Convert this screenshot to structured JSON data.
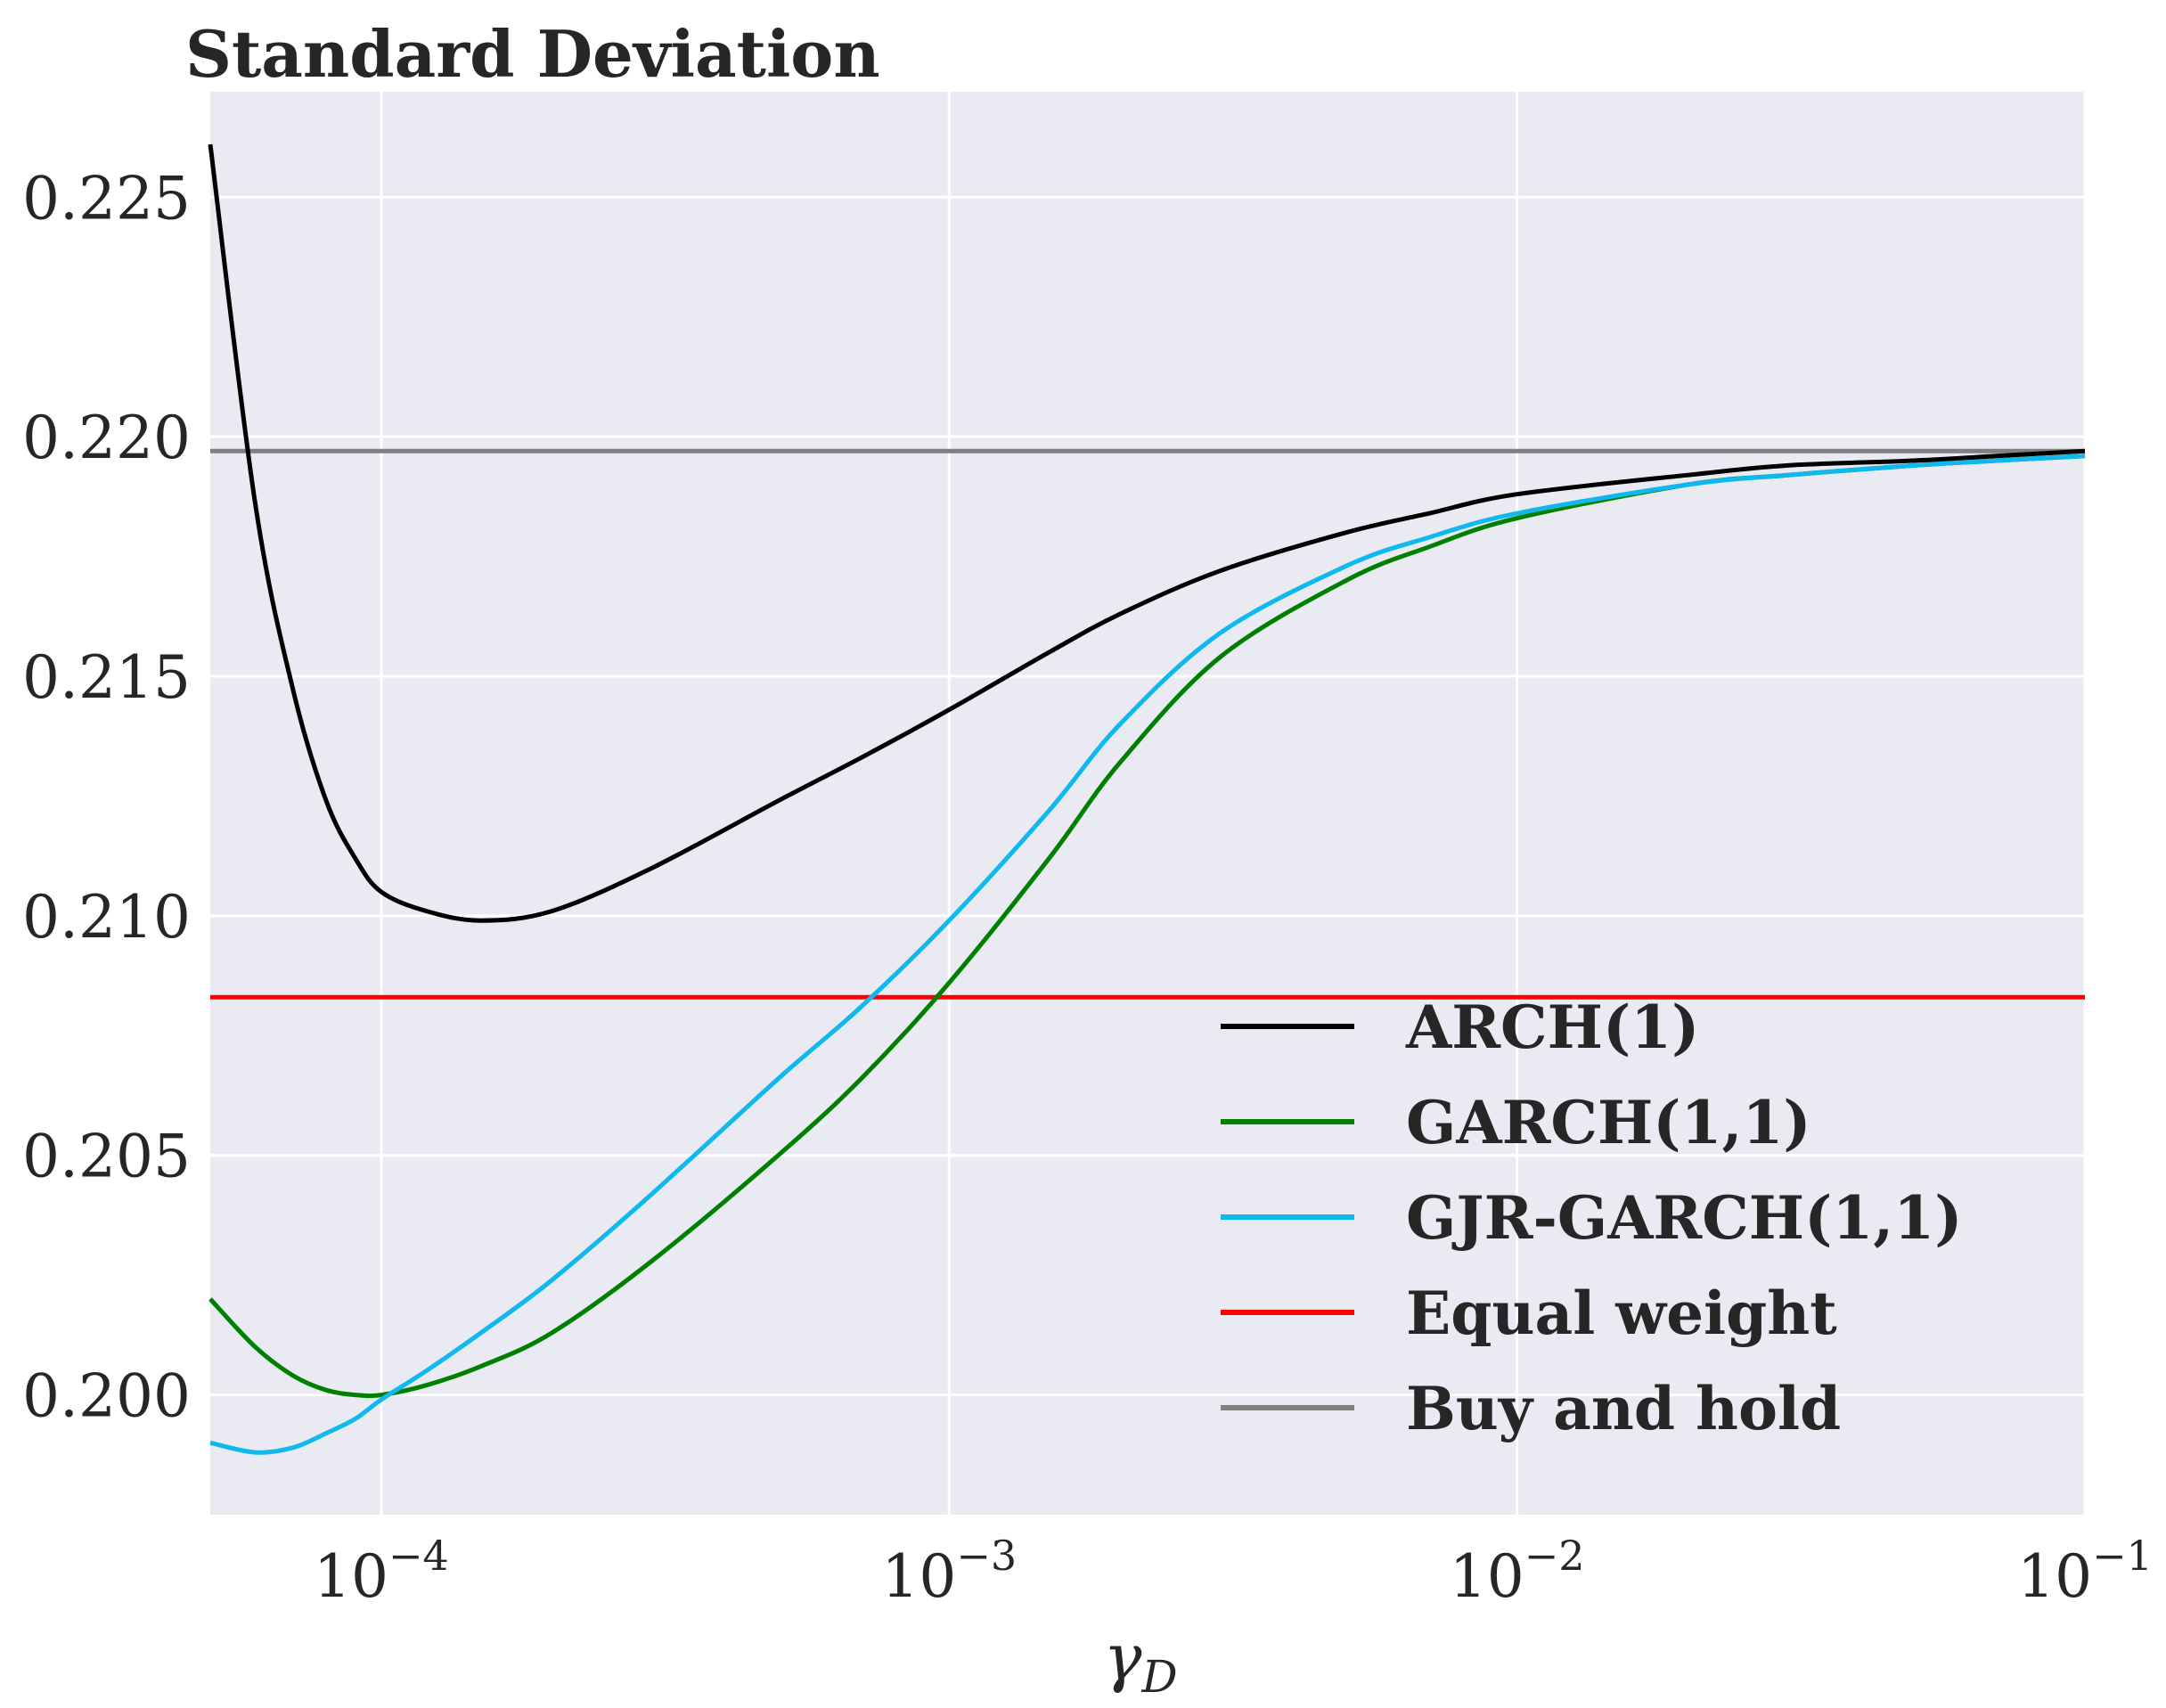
{
  "chart_data": {
    "type": "line",
    "title": "Standard Deviation",
    "xlabel": "γ",
    "xlabel_subscript": "D",
    "ylabel": "",
    "xscale": "log",
    "xlim": [
      5e-05,
      0.1
    ],
    "ylim": [
      0.1975,
      0.2272
    ],
    "grid": true,
    "legend_position": "lower-right",
    "background_color": "#EAEAF2",
    "x_ticks": [
      {
        "value": 0.0001,
        "base": "10",
        "exp": "−4"
      },
      {
        "value": 0.001,
        "base": "10",
        "exp": "−3"
      },
      {
        "value": 0.01,
        "base": "10",
        "exp": "−2"
      },
      {
        "value": 0.1,
        "base": "10",
        "exp": "−1"
      }
    ],
    "y_ticks": [
      {
        "value": 0.2,
        "label": "0.200"
      },
      {
        "value": 0.205,
        "label": "0.205"
      },
      {
        "value": 0.21,
        "label": "0.210"
      },
      {
        "value": 0.215,
        "label": "0.215"
      },
      {
        "value": 0.22,
        "label": "0.220"
      },
      {
        "value": 0.225,
        "label": "0.225"
      }
    ],
    "series": [
      {
        "name": "ARCH(1)",
        "color": "#000000",
        "x": [
          5e-05,
          6e-05,
          7e-05,
          8e-05,
          9e-05,
          0.0001,
          0.00012,
          0.00015,
          0.0002,
          0.0003,
          0.0005,
          0.0007,
          0.001,
          0.0015,
          0.002,
          0.003,
          0.005,
          0.007,
          0.01,
          0.02,
          0.03,
          0.05,
          0.07,
          0.1
        ],
        "y": [
          0.2261,
          0.2186,
          0.2147,
          0.2124,
          0.2112,
          0.2105,
          0.2101,
          0.2099,
          0.2101,
          0.211,
          0.2124,
          0.2133,
          0.2143,
          0.2155,
          0.2163,
          0.2172,
          0.218,
          0.2184,
          0.2188,
          0.2192,
          0.2194,
          0.2195,
          0.2196,
          0.2197
        ]
      },
      {
        "name": "GARCH(1,1)",
        "color": "#008000",
        "x": [
          5e-05,
          6e-05,
          7e-05,
          8e-05,
          9e-05,
          0.0001,
          0.00012,
          0.00015,
          0.0002,
          0.0003,
          0.0005,
          0.0007,
          0.001,
          0.0015,
          0.002,
          0.003,
          0.005,
          0.007,
          0.01,
          0.02,
          0.03,
          0.05,
          0.07,
          0.1
        ],
        "y": [
          0.202,
          0.201,
          0.2004,
          0.2001,
          0.2,
          0.2,
          0.2002,
          0.2006,
          0.2013,
          0.2028,
          0.205,
          0.2066,
          0.2086,
          0.2112,
          0.2132,
          0.2154,
          0.217,
          0.2177,
          0.2183,
          0.219,
          0.2192,
          0.2194,
          0.2195,
          0.2196
        ]
      },
      {
        "name": "GJR-GARCH(1,1)",
        "color": "#0FB8EE",
        "x": [
          5e-05,
          6e-05,
          7e-05,
          8e-05,
          9e-05,
          0.0001,
          0.00012,
          0.00015,
          0.0002,
          0.0003,
          0.0005,
          0.0007,
          0.001,
          0.0015,
          0.002,
          0.003,
          0.005,
          0.007,
          0.01,
          0.02,
          0.03,
          0.05,
          0.07,
          0.1
        ],
        "y": [
          0.199,
          0.1988,
          0.1989,
          0.1992,
          0.1995,
          0.1999,
          0.2005,
          0.2013,
          0.2024,
          0.2042,
          0.2066,
          0.2081,
          0.2099,
          0.2122,
          0.214,
          0.2159,
          0.2173,
          0.2179,
          0.2184,
          0.219,
          0.2192,
          0.2194,
          0.2195,
          0.2196
        ]
      },
      {
        "name": "Equal weight",
        "color": "#FF0000",
        "x": [
          5e-05,
          0.1
        ],
        "y": [
          0.2083,
          0.2083
        ]
      },
      {
        "name": "Buy and hold",
        "color": "#808080",
        "x": [
          5e-05,
          0.1
        ],
        "y": [
          0.2197,
          0.2197
        ]
      }
    ]
  }
}
